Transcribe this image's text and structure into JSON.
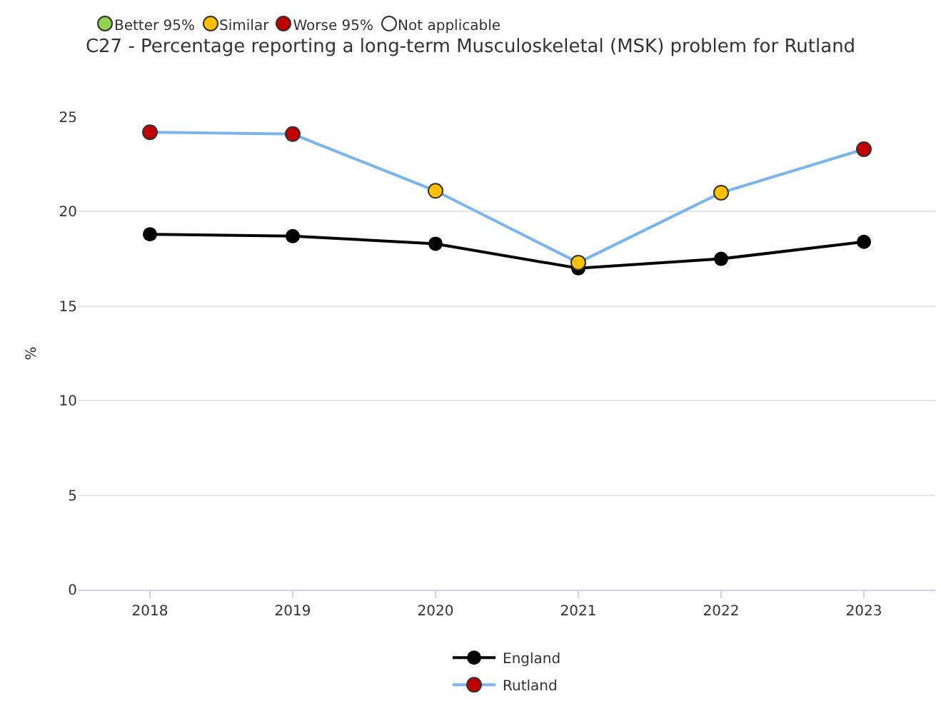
{
  "chart_data": {
    "type": "line",
    "title": "C27 - Percentage reporting a long-term Musculoskeletal (MSK) problem for Rutland",
    "ylabel": "%",
    "categories": [
      "2018",
      "2019",
      "2020",
      "2021",
      "2022",
      "2023"
    ],
    "ylim": [
      0,
      25
    ],
    "yticks": [
      0,
      5,
      10,
      15,
      20,
      25
    ],
    "grid": "y",
    "legend": "bottom",
    "marker": "circle",
    "line_style": "solid",
    "annotations": [
      "Better 95%",
      "Similar",
      "Worse 95%",
      "Not applicable"
    ],
    "series": [
      {
        "name": "England",
        "color": "#000000",
        "values": [
          18.8,
          18.7,
          18.3,
          17.0,
          17.5,
          18.4
        ]
      },
      {
        "name": "Rutland",
        "color": "#7cb5ec",
        "colors": [
          "#c00000",
          "#c00000",
          "#ffc000",
          "#ffc000",
          "#ffc000",
          "#c00000"
        ],
        "values": [
          24.2,
          24.1,
          21.1,
          17.3,
          21.0,
          23.3
        ]
      }
    ]
  }
}
